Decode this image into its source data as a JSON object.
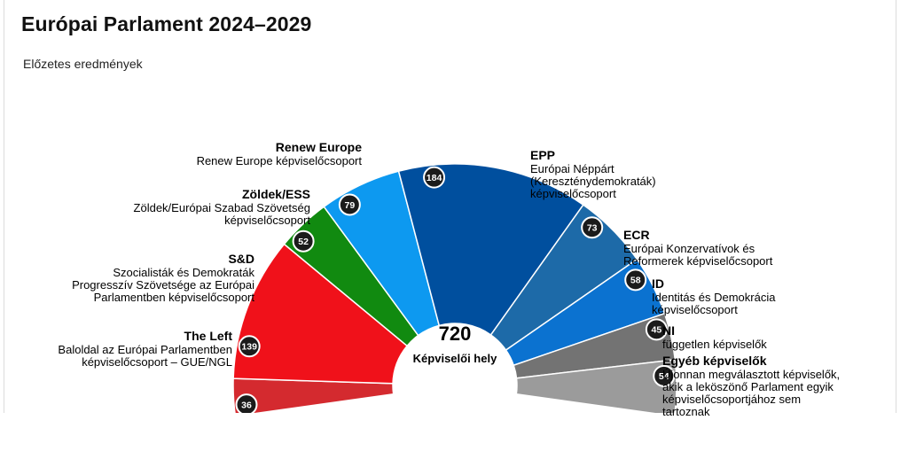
{
  "title": "Európai Parlament 2024–2029",
  "subtitle": "Előzetes eredmények",
  "chart_data": {
    "type": "parliament-semicircle",
    "title": "Európai Parlament 2024–2029",
    "subtitle": "Előzetes eredmények",
    "total": 720,
    "total_label": "Képviselői hely",
    "series": [
      {
        "name": "The Left",
        "description": [
          "Baloldal az Európai Parlamentben",
          "képviselőcsoport – GUE/NGL"
        ],
        "value": 36,
        "color": "#d42a2f"
      },
      {
        "name": "S&D",
        "description": [
          "Szocialisták és Demokraták",
          "Progresszív Szövetsége az Európai",
          "Parlamentben képviselőcsoport"
        ],
        "value": 139,
        "color": "#f0111a"
      },
      {
        "name": "Zöldek/ESS",
        "description": [
          "Zöldek/Európai Szabad Szövetség",
          "képviselőcsoport"
        ],
        "value": 52,
        "color": "#118a10"
      },
      {
        "name": "Renew Europe",
        "description": [
          "Renew Europe képviselőcsoport"
        ],
        "value": 79,
        "color": "#0d99f0"
      },
      {
        "name": "EPP",
        "description": [
          "Európai Néppárt",
          "(Kereszténydemokraták)",
          "képviselőcsoport"
        ],
        "value": 184,
        "color": "#004f9e"
      },
      {
        "name": "ECR",
        "description": [
          "Európai Konzervatívok és",
          "Reformerek képviselőcsoport"
        ],
        "value": 73,
        "color": "#1d6aa8"
      },
      {
        "name": "ID",
        "description": [
          "Identitás és Demokrácia",
          "képviselőcsoport"
        ],
        "value": 58,
        "color": "#0b72d0"
      },
      {
        "name": "NI",
        "description": [
          "független képviselők"
        ],
        "value": 45,
        "color": "#737373"
      },
      {
        "name": "Egyéb képviselők",
        "description": [
          "Újonnan megválasztott képviselők,",
          "akik a leköszönő Parlament egyik",
          "képviselőcsoportjához sem",
          "tartoznak"
        ],
        "value": 54,
        "color": "#9b9b9b"
      }
    ]
  }
}
